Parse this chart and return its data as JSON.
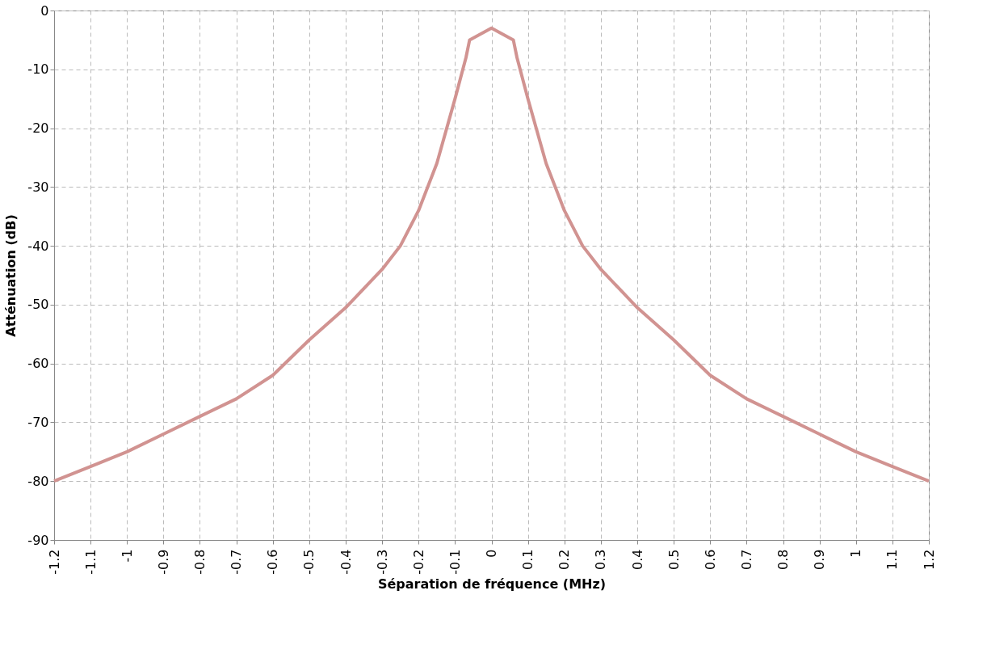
{
  "chart_data": {
    "type": "line",
    "xlabel": "Séparation de fréquence (MHz)",
    "ylabel": "Atténuation (dB)",
    "x": [
      -1.2,
      -1.1,
      -1.0,
      -0.9,
      -0.8,
      -0.7,
      -0.6,
      -0.5,
      -0.4,
      -0.3,
      -0.25,
      -0.2,
      -0.15,
      -0.1,
      -0.07,
      -0.06,
      0,
      0.06,
      0.07,
      0.1,
      0.15,
      0.2,
      0.25,
      0.3,
      0.4,
      0.5,
      0.6,
      0.7,
      0.8,
      0.9,
      1.0,
      1.1,
      1.2
    ],
    "series": [
      {
        "color": "#d19391",
        "values": [
          -80,
          -77.5,
          -75,
          -72,
          -69,
          -66,
          -62,
          -56,
          -50.5,
          -44,
          -40,
          -34,
          -26,
          -15,
          -8,
          -5,
          -3,
          -5,
          -8,
          -15,
          -26,
          -34,
          -40,
          -44,
          -50.5,
          -56,
          -62,
          -66,
          -69,
          -72,
          -75,
          -77.5,
          -80
        ]
      }
    ],
    "xlim": [
      -1.2,
      1.2
    ],
    "xticks": [
      -1.2,
      -1.1,
      -1,
      -0.9,
      -0.8,
      -0.7,
      -0.6,
      -0.5,
      -0.4,
      -0.3,
      -0.2,
      -0.1,
      0,
      0.1,
      0.2,
      0.3,
      0.4,
      0.5,
      0.6,
      0.7,
      0.8,
      0.9,
      1,
      1.1,
      1.2
    ],
    "ylim": [
      -90,
      0
    ],
    "yticks": [
      -90,
      -80,
      -70,
      -60,
      -50,
      -40,
      -30,
      -20,
      -10,
      0
    ],
    "grid": true,
    "legend": false,
    "marker": "none",
    "line_style": "solid"
  }
}
